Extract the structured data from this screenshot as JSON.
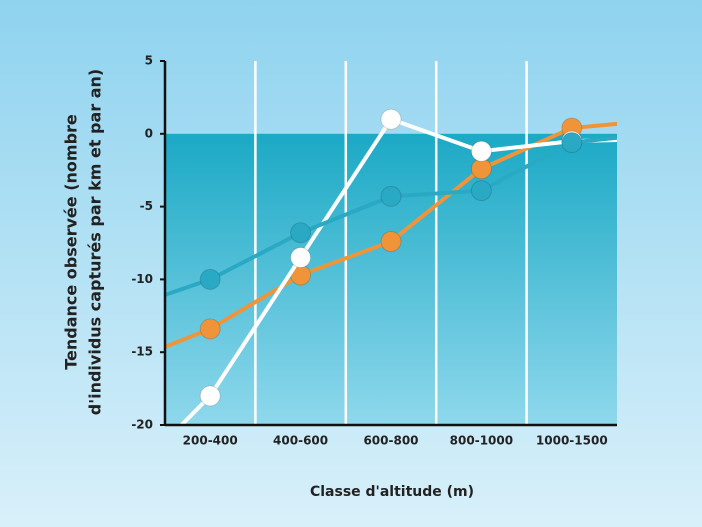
{
  "chart_data": {
    "type": "line",
    "x_label": "Classe d'altitude (m)",
    "y_label": [
      "Tendance observée (nombre",
      "d'individus capturés par km et par an)"
    ],
    "categories": [
      "200-400",
      "400-600",
      "600-800",
      "800-1000",
      "1000-1500"
    ],
    "series": [
      {
        "color": "#f0943a",
        "values": [
          -13.4,
          -9.7,
          -7.4,
          -2.4,
          0.4
        ]
      },
      {
        "color": "#ffffff",
        "values": [
          -18,
          -8.5,
          1,
          -1.2,
          -0.5
        ]
      },
      {
        "color": "#2aa9c4",
        "values": [
          -10,
          -6.8,
          -4.3,
          -3.9,
          -0.6
        ]
      }
    ],
    "ylim": [
      -20,
      5
    ],
    "yticks": [
      -20,
      -15,
      -10,
      -5,
      0,
      5
    ]
  }
}
